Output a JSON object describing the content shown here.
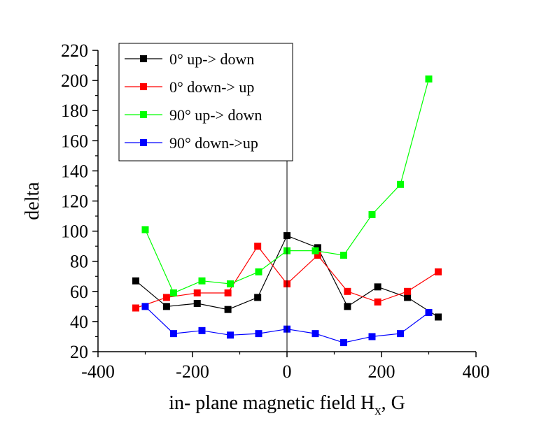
{
  "chart_data": {
    "type": "line",
    "xlabel": "in- plane magnetic field H",
    "xlabel_sub": "x",
    "xlabel_suffix": ", G",
    "ylabel": "delta",
    "xlim": [
      -400,
      400
    ],
    "ylim": [
      20,
      220
    ],
    "xticks": [
      -400,
      -200,
      0,
      200,
      400
    ],
    "xtick_labels": [
      "-400",
      "-200",
      "0",
      "200",
      "400"
    ],
    "yticks": [
      20,
      40,
      60,
      80,
      100,
      120,
      140,
      160,
      180,
      200,
      220
    ],
    "ytick_labels": [
      "20",
      "40",
      "60",
      "80",
      "100",
      "120",
      "140",
      "160",
      "180",
      "200",
      "220"
    ],
    "grid": false,
    "legend_position": "top-left",
    "series": [
      {
        "name": "0° up-> down",
        "color": "#000000",
        "x": [
          -320,
          -255,
          -190,
          -125,
          -62,
          0,
          65,
          128,
          192,
          255,
          320
        ],
        "y": [
          67,
          50,
          52,
          48,
          56,
          97,
          89,
          50,
          63,
          56,
          43
        ]
      },
      {
        "name": "0° down-> up",
        "color": "#ff0000",
        "x": [
          -320,
          -255,
          -190,
          -125,
          -62,
          0,
          65,
          128,
          192,
          255,
          320
        ],
        "y": [
          49,
          56,
          59,
          59,
          90,
          65,
          84,
          60,
          53,
          60,
          73
        ]
      },
      {
        "name": "90° up-> down",
        "color": "#00ff00",
        "x": [
          -300,
          -240,
          -180,
          -120,
          -60,
          0,
          60,
          120,
          180,
          240,
          300
        ],
        "y": [
          101,
          59,
          67,
          65,
          73,
          87,
          87,
          84,
          111,
          131,
          201
        ]
      },
      {
        "name": "90° down->up",
        "color": "#0000ff",
        "x": [
          -300,
          -240,
          -180,
          -120,
          -60,
          0,
          60,
          120,
          180,
          240,
          300
        ],
        "y": [
          50,
          32,
          34,
          31,
          32,
          35,
          32,
          26,
          30,
          32,
          46
        ]
      }
    ]
  }
}
